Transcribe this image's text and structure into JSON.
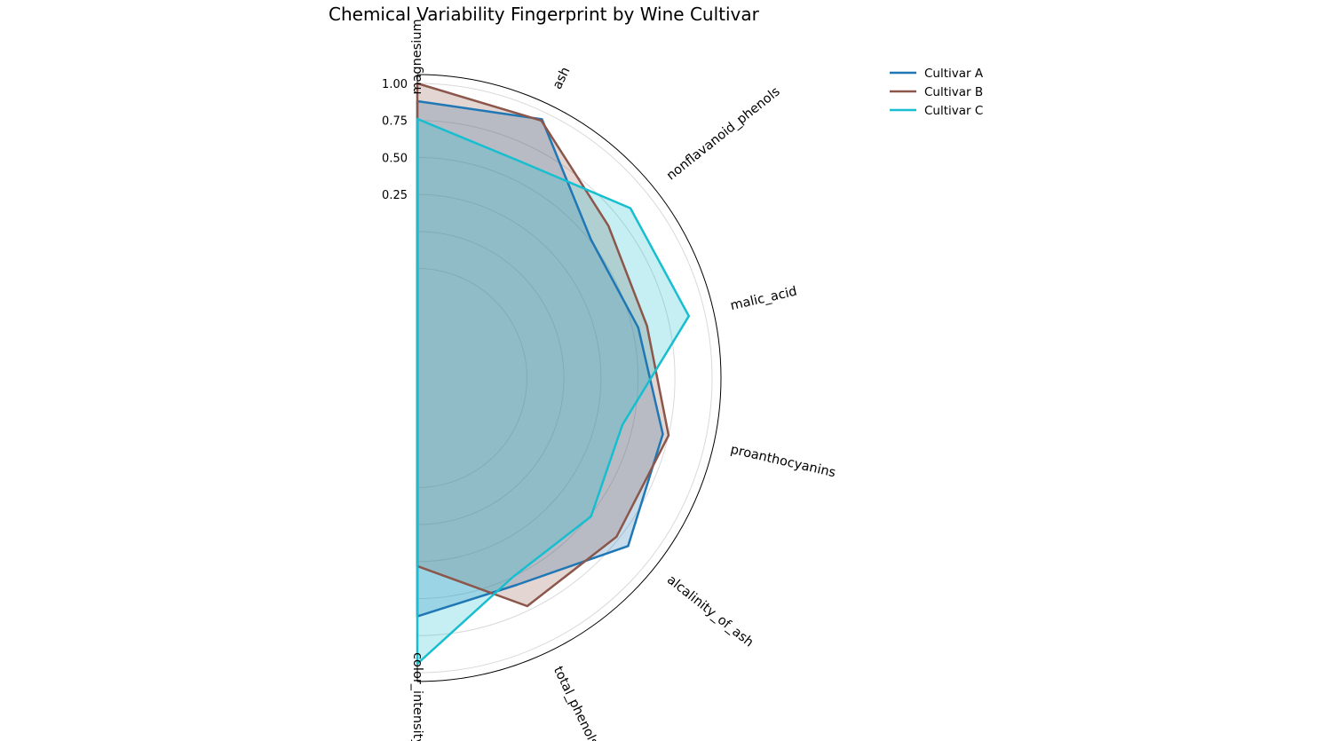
{
  "chart_data": {
    "type": "radar",
    "title": "Chemical Variability Fingerprint by Wine Cultivar",
    "categories": [
      "magnesium",
      "ash",
      "nonflavanoid_phenols",
      "malic_acid",
      "proanthocyanins",
      "alcalinity_of_ash",
      "total_phenols",
      "color_intensity"
    ],
    "radial_ticks": [
      {
        "value": 0.25,
        "label": "0.25"
      },
      {
        "value": 0.5,
        "label": "0.50"
      },
      {
        "value": 0.75,
        "label": "0.75"
      },
      {
        "value": 1.0,
        "label": "1.00"
      }
    ],
    "radial_gridlines": [
      -0.25,
      0.0,
      0.25,
      0.5,
      0.75,
      1.0
    ],
    "rlim": [
      -0.99,
      1.06
    ],
    "angular_span_degrees": [
      0,
      180
    ],
    "grid": true,
    "legend_position": "top-right",
    "series": [
      {
        "name": "Cultivar A",
        "color": "#1f77b4",
        "values": [
          0.88,
          0.95,
          0.51,
          0.54,
          0.71,
          0.83,
          0.56,
          0.62
        ]
      },
      {
        "name": "Cultivar B",
        "color": "#8c564b",
        "values": [
          1.0,
          0.94,
          0.66,
          0.6,
          0.75,
          0.73,
          0.72,
          0.28
        ]
      },
      {
        "name": "Cultivar C",
        "color": "#17becf",
        "values": [
          0.76,
          0.63,
          0.85,
          0.89,
          0.43,
          0.51,
          0.5,
          0.94
        ]
      }
    ]
  }
}
